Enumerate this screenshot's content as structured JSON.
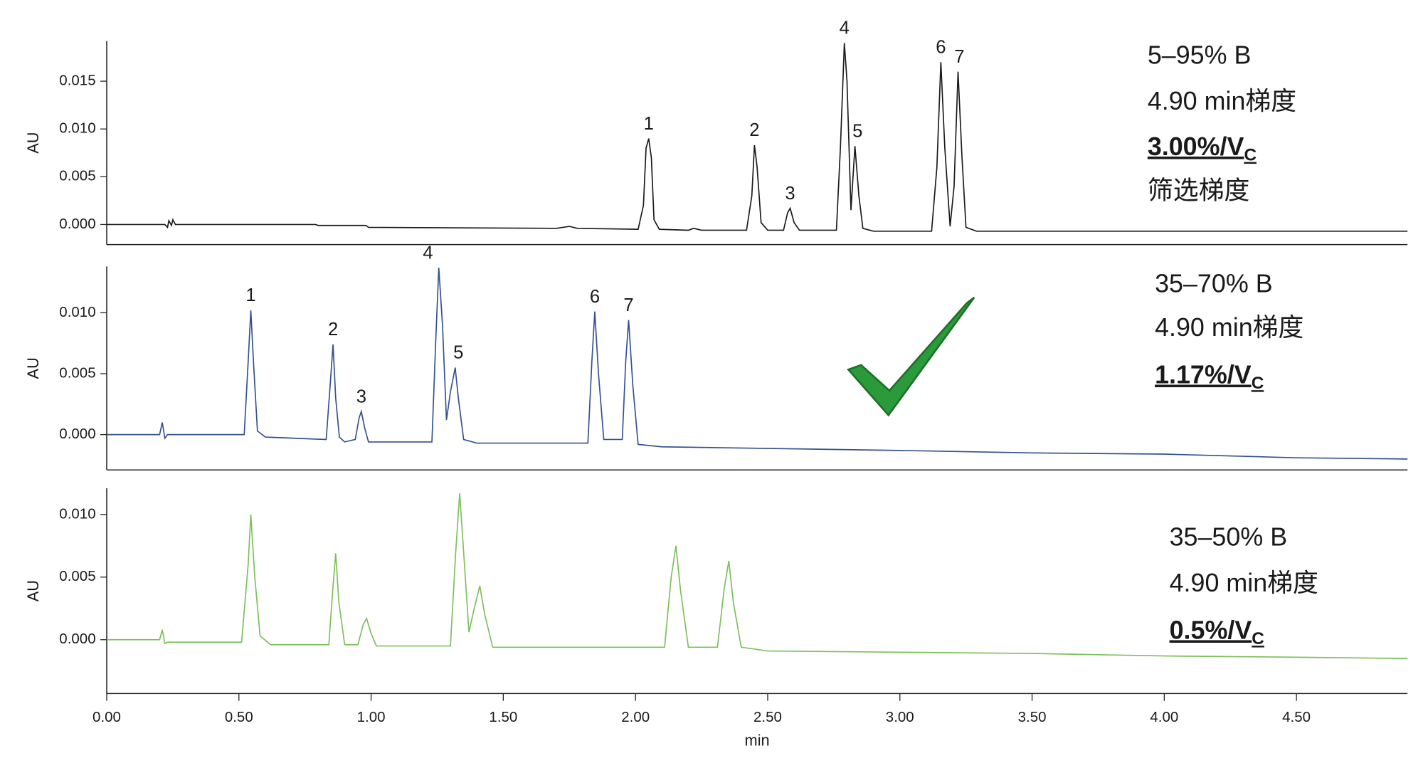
{
  "chart_data": [
    {
      "type": "line",
      "color": "#1a1a1a",
      "ylabel": "AU",
      "xlim": [
        0,
        4.92
      ],
      "ylim": [
        -0.0021,
        0.0192
      ],
      "yticks": [
        {
          "value": 0,
          "label": "0.000"
        },
        {
          "value": 0.005,
          "label": "0.005"
        },
        {
          "value": 0.01,
          "label": "0.010"
        },
        {
          "value": 0.015,
          "label": "0.015"
        }
      ],
      "x": [
        0,
        0.22,
        0.23,
        0.235,
        0.245,
        0.25,
        0.26,
        0.79,
        0.8,
        0.98,
        0.99,
        1.7,
        1.75,
        1.78,
        2.01,
        2.03,
        2.04,
        2.05,
        2.06,
        2.07,
        2.09,
        2.2,
        2.22,
        2.25,
        2.42,
        2.44,
        2.45,
        2.46,
        2.475,
        2.5,
        2.56,
        2.575,
        2.585,
        2.6,
        2.62,
        2.76,
        2.775,
        2.79,
        2.8,
        2.815,
        2.83,
        2.845,
        2.86,
        2.9,
        3.12,
        3.14,
        3.155,
        3.17,
        3.19,
        3.205,
        3.22,
        3.235,
        3.25,
        3.29,
        4.92
      ],
      "values": [
        0,
        0,
        -0.0003,
        0.0004,
        -0.0001,
        0.0005,
        0,
        0,
        -0.0001,
        -0.0001,
        -0.0003,
        -0.0004,
        -0.0002,
        -0.0004,
        -0.0005,
        0.002,
        0.008,
        0.009,
        0.007,
        0.0005,
        -0.0005,
        -0.0006,
        -0.0004,
        -0.0006,
        -0.0006,
        0.003,
        0.0083,
        0.006,
        0.0002,
        -0.0006,
        -0.0006,
        0.0012,
        0.0017,
        0.0002,
        -0.0006,
        -0.0006,
        0.008,
        0.019,
        0.015,
        0.0015,
        0.0082,
        0.003,
        -0.0004,
        -0.0007,
        -0.0007,
        0.006,
        0.017,
        0.008,
        -0.0002,
        0.004,
        0.016,
        0.007,
        -0.0003,
        -0.0007,
        -0.0007
      ],
      "peak_labels": [
        {
          "label": "1",
          "x": 2.05,
          "y": 0.009
        },
        {
          "label": "2",
          "x": 2.45,
          "y": 0.0083
        },
        {
          "label": "3",
          "x": 2.585,
          "y": 0.0017
        },
        {
          "label": "4",
          "x": 2.79,
          "y": 0.019
        },
        {
          "label": "5",
          "x": 2.84,
          "y": 0.0082
        },
        {
          "label": "6",
          "x": 3.155,
          "y": 0.017
        },
        {
          "label": "7",
          "x": 3.225,
          "y": 0.016
        }
      ],
      "notes": [
        "5–95% B",
        "4.90 min梯度",
        {
          "text": "3.00%/V",
          "sub": "C"
        },
        "筛选梯度"
      ]
    },
    {
      "type": "line",
      "color": "#34508f",
      "ylabel": "AU",
      "xlim": [
        0,
        4.92
      ],
      "ylim": [
        -0.0029,
        0.0138
      ],
      "yticks": [
        {
          "value": 0,
          "label": "0.000"
        },
        {
          "value": 0.005,
          "label": "0.005"
        },
        {
          "value": 0.01,
          "label": "0.010"
        }
      ],
      "x": [
        0,
        0.2,
        0.21,
        0.22,
        0.23,
        0.52,
        0.535,
        0.545,
        0.555,
        0.57,
        0.6,
        0.83,
        0.845,
        0.856,
        0.866,
        0.88,
        0.9,
        0.94,
        0.955,
        0.963,
        0.975,
        0.99,
        1.23,
        1.245,
        1.256,
        1.27,
        1.285,
        1.3,
        1.318,
        1.33,
        1.35,
        1.4,
        1.82,
        1.835,
        1.846,
        1.86,
        1.88,
        1.95,
        1.963,
        1.974,
        1.99,
        2.01,
        2.1,
        3.0,
        3.5,
        4.0,
        4.5,
        4.92
      ],
      "values": [
        0,
        0,
        0.001,
        -0.0003,
        0,
        0,
        0.006,
        0.0102,
        0.006,
        0.0003,
        -0.0002,
        -0.0004,
        0.004,
        0.0074,
        0.003,
        -0.0002,
        -0.0006,
        -0.0004,
        0.0014,
        0.0019,
        0.0006,
        -0.0006,
        -0.0006,
        0.008,
        0.0137,
        0.009,
        0.0012,
        0.0035,
        0.0055,
        0.003,
        -0.0004,
        -0.0007,
        -0.0007,
        0.006,
        0.0101,
        0.005,
        -0.0004,
        -0.0004,
        0.006,
        0.0094,
        0.004,
        -0.0008,
        -0.001,
        -0.0013,
        -0.0015,
        -0.0016,
        -0.0019,
        -0.002
      ],
      "peak_labels": [
        {
          "label": "1",
          "x": 0.545,
          "y": 0.0102
        },
        {
          "label": "2",
          "x": 0.856,
          "y": 0.0074
        },
        {
          "label": "3",
          "x": 0.963,
          "y": 0.0019
        },
        {
          "label": "4",
          "x": 1.215,
          "y": 0.0137
        },
        {
          "label": "5",
          "x": 1.33,
          "y": 0.0055
        },
        {
          "label": "6",
          "x": 1.846,
          "y": 0.0101
        },
        {
          "label": "7",
          "x": 1.974,
          "y": 0.0094
        }
      ],
      "notes": [
        "35–70% B",
        "4.90 min梯度",
        {
          "text": "1.17%/V",
          "sub": "C"
        }
      ]
    },
    {
      "type": "line",
      "color": "#7cbf5b",
      "ylabel": "AU",
      "xlabel": "min",
      "xlim": [
        0,
        4.92
      ],
      "ylim": [
        -0.0043,
        0.0121
      ],
      "xticks": [
        {
          "value": 0,
          "label": "0.00"
        },
        {
          "value": 0.5,
          "label": "0.50"
        },
        {
          "value": 1,
          "label": "1.00"
        },
        {
          "value": 1.5,
          "label": "1.50"
        },
        {
          "value": 2,
          "label": "2.00"
        },
        {
          "value": 2.5,
          "label": "2.50"
        },
        {
          "value": 3,
          "label": "3.00"
        },
        {
          "value": 3.5,
          "label": "3.50"
        },
        {
          "value": 4,
          "label": "4.00"
        },
        {
          "value": 4.5,
          "label": "4.50"
        }
      ],
      "yticks": [
        {
          "value": 0,
          "label": "0.000"
        },
        {
          "value": 0.005,
          "label": "0.005"
        },
        {
          "value": 0.01,
          "label": "0.010"
        }
      ],
      "x": [
        0,
        0.2,
        0.21,
        0.22,
        0.23,
        0.51,
        0.535,
        0.545,
        0.56,
        0.58,
        0.62,
        0.84,
        0.855,
        0.866,
        0.878,
        0.9,
        0.95,
        0.97,
        0.983,
        1.0,
        1.02,
        1.3,
        1.32,
        1.335,
        1.35,
        1.37,
        1.39,
        1.411,
        1.43,
        1.46,
        1.5,
        2.11,
        2.135,
        2.153,
        2.17,
        2.2,
        2.31,
        2.335,
        2.353,
        2.37,
        2.4,
        2.5,
        3.0,
        3.5,
        4.0,
        4.5,
        4.92
      ],
      "values": [
        0,
        0,
        0.0008,
        -0.0003,
        -0.0002,
        -0.0002,
        0.006,
        0.01,
        0.005,
        0.0003,
        -0.0004,
        -0.0004,
        0.004,
        0.0069,
        0.003,
        -0.0004,
        -0.0004,
        0.0012,
        0.0017,
        0.0005,
        -0.0005,
        -0.0005,
        0.007,
        0.0117,
        0.007,
        0.0006,
        0.0025,
        0.0043,
        0.002,
        -0.0006,
        -0.0006,
        -0.0006,
        0.005,
        0.0075,
        0.004,
        -0.0006,
        -0.0006,
        0.004,
        0.0063,
        0.003,
        -0.0006,
        -0.0009,
        -0.001,
        -0.0011,
        -0.0013,
        -0.0014,
        -0.0015
      ],
      "notes": [
        "35–50% B",
        "4.90 min梯度",
        {
          "text": "0.5%/V",
          "sub": "C"
        }
      ]
    }
  ]
}
